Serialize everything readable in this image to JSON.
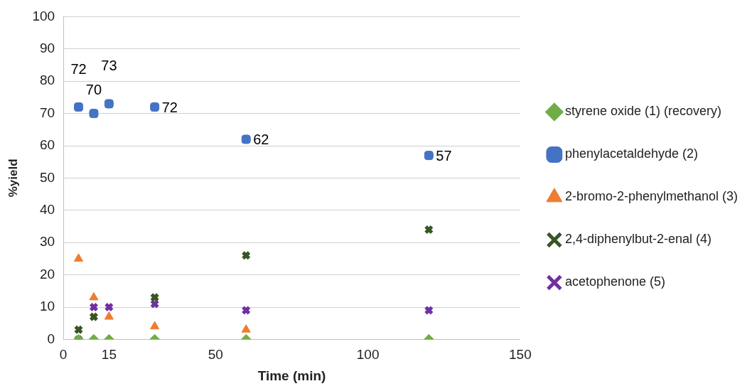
{
  "chart_data": {
    "type": "scatter",
    "xlabel": "Time (min)",
    "ylabel": "%yield",
    "xlim": [
      0,
      150
    ],
    "xticks": [
      0,
      15,
      50,
      100,
      150
    ],
    "ylim": [
      0,
      100
    ],
    "yticks": [
      0,
      10,
      20,
      30,
      40,
      50,
      60,
      70,
      80,
      90,
      100
    ],
    "grid": "y",
    "legend": "right",
    "series": [
      {
        "name": "styrene oxide (1) (recovery)",
        "color": "#70ad47",
        "marker": "diamond",
        "x": [
          5,
          10,
          15,
          30,
          60,
          120
        ],
        "values": [
          0,
          0,
          0,
          0,
          0,
          0
        ]
      },
      {
        "name": "phenylacetaldehyde (2)",
        "color": "#4472c4",
        "marker": "square",
        "x": [
          5,
          10,
          15,
          30,
          60,
          120
        ],
        "values": [
          72,
          70,
          73,
          72,
          62,
          57
        ],
        "value_labels": [
          "72",
          "70",
          "73",
          "72",
          "62",
          "57"
        ]
      },
      {
        "name": "2-bromo-2-phenylmethanol (3)",
        "color": "#ed7d31",
        "marker": "triangle",
        "x": [
          5,
          10,
          15,
          30,
          60,
          120
        ],
        "values": [
          25,
          13,
          7,
          4,
          3,
          0
        ]
      },
      {
        "name": "2,4-diphenylbut-2-enal (4)",
        "color": "#375623",
        "marker": "cross",
        "x": [
          5,
          10,
          30,
          60,
          120
        ],
        "values": [
          3,
          7,
          13,
          26,
          34
        ]
      },
      {
        "name": "acetophenone (5)",
        "color": "#7030a0",
        "marker": "cross",
        "x": [
          5,
          10,
          15,
          30,
          60,
          120
        ],
        "values": [
          0,
          10,
          10,
          11,
          9,
          9
        ]
      }
    ]
  }
}
